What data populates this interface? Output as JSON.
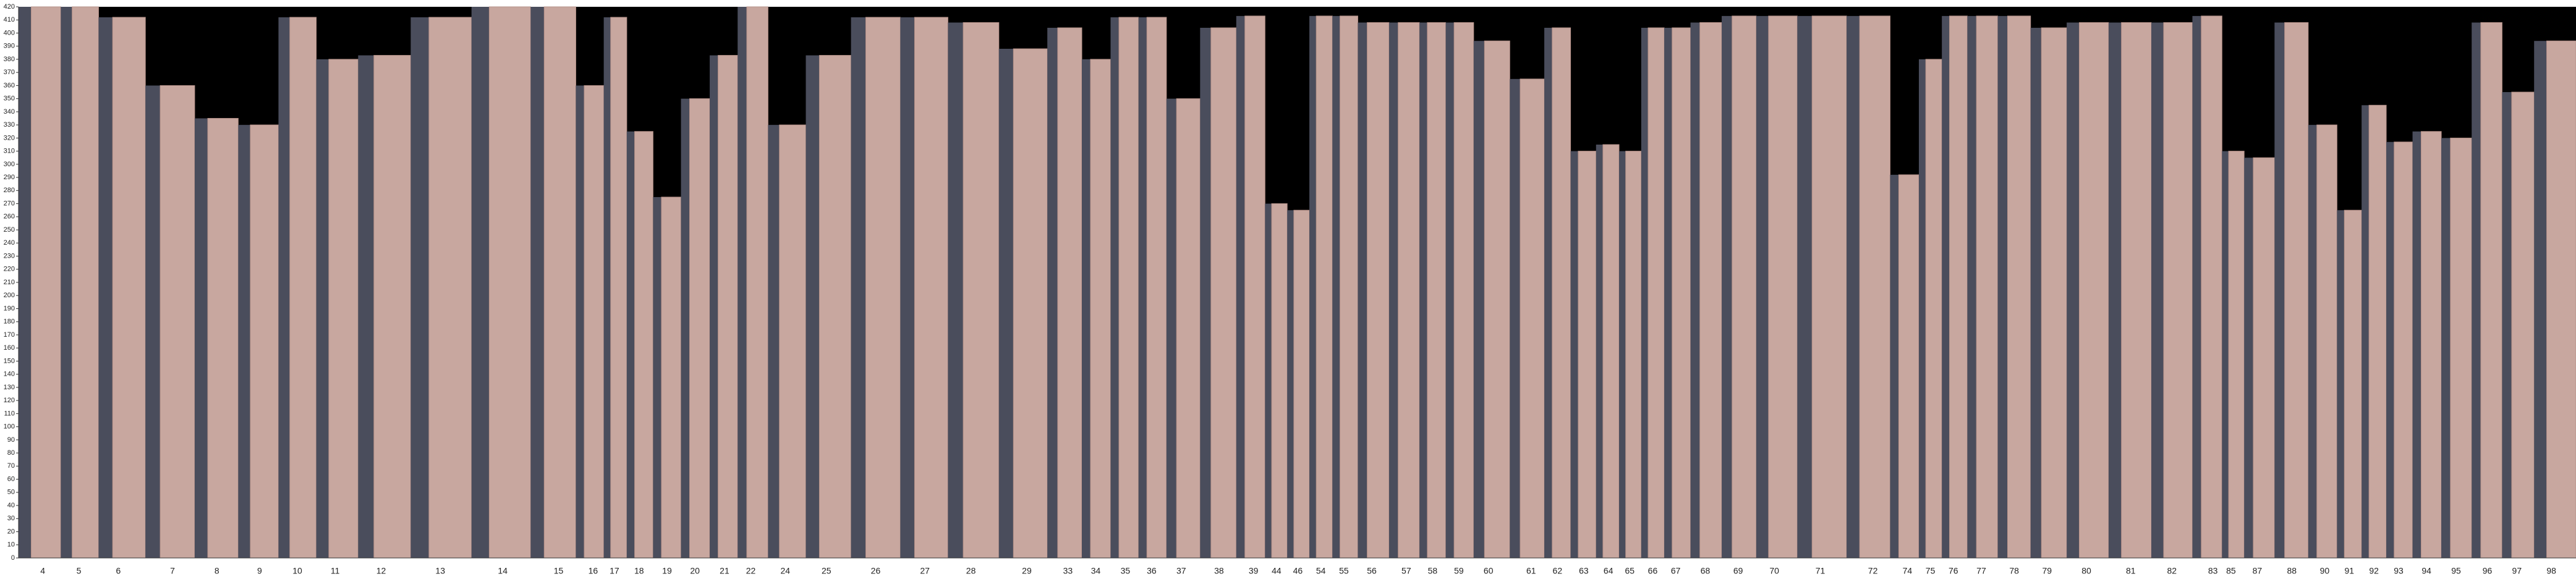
{
  "chart_data": {
    "type": "bar",
    "categories": [
      "4",
      "5",
      "6",
      "7",
      "8",
      "9",
      "10",
      "11",
      "12",
      "13",
      "14",
      "15",
      "16",
      "17",
      "18",
      "19",
      "20",
      "21",
      "22",
      "24",
      "25",
      "26",
      "27",
      "28",
      "29",
      "33",
      "34",
      "35",
      "36",
      "37",
      "38",
      "39",
      "44",
      "46",
      "54",
      "55",
      "56",
      "57",
      "58",
      "59",
      "60",
      "61",
      "62",
      "63",
      "64",
      "65",
      "66",
      "67",
      "68",
      "69",
      "70",
      "71",
      "72",
      "74",
      "75",
      "76",
      "77",
      "78",
      "79",
      "80",
      "81",
      "82",
      "83",
      "85",
      "87",
      "88",
      "90",
      "91",
      "92",
      "93",
      "94",
      "95",
      "96",
      "97",
      "98"
    ],
    "values": [
      420,
      420,
      412,
      360,
      335,
      330,
      412,
      380,
      383,
      412,
      420,
      420,
      360,
      412,
      325,
      275,
      350,
      383,
      420,
      330,
      383,
      412,
      412,
      408,
      388,
      404,
      380,
      412,
      412,
      350,
      404,
      413,
      270,
      265,
      413,
      413,
      408,
      408,
      408,
      408,
      394,
      365,
      404,
      310,
      315,
      310,
      404,
      404,
      408,
      413,
      413,
      413,
      413,
      292,
      380,
      413,
      413,
      413,
      404,
      408,
      408,
      408,
      413,
      310,
      305,
      408,
      330,
      265,
      345,
      317,
      325,
      320,
      408,
      355,
      394
    ],
    "color": "#c8a79f",
    "ylim": [
      0,
      420
    ],
    "yticks": [
      0,
      10,
      20,
      30,
      40,
      50,
      60,
      70,
      80,
      90,
      100,
      110,
      120,
      130,
      140,
      150,
      160,
      170,
      180,
      190,
      200,
      210,
      220,
      230,
      240,
      250,
      260,
      270,
      280,
      290,
      300,
      310,
      320,
      330,
      340,
      350,
      360,
      370,
      380,
      390,
      400,
      410,
      420
    ]
  }
}
